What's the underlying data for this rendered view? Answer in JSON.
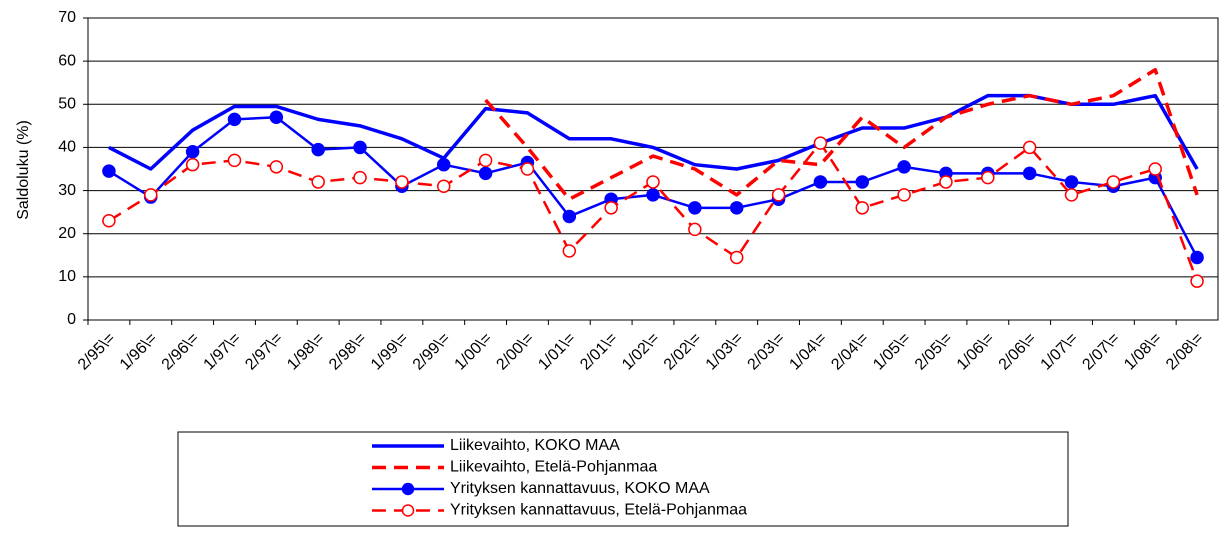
{
  "chart_data": {
    "type": "line",
    "y_label": "Saldoluku (%)",
    "categories": [
      "2/95\\=",
      "1/96\\=",
      "2/96\\=",
      "1/97\\=",
      "2/97\\=",
      "1/98\\=",
      "2/98\\=",
      "1/99\\=",
      "2/99\\=",
      "1/00\\=",
      "2/00\\=",
      "1/01\\=",
      "2/01\\=",
      "1/02\\=",
      "2/02\\=",
      "1/03\\=",
      "2/03\\=",
      "1/04\\=",
      "2/04\\=",
      "1/05\\=",
      "2/05\\=",
      "1/06\\=",
      "2/06\\=",
      "1/07\\=",
      "2/07\\=",
      "1/08\\=",
      "2/08\\="
    ],
    "ylim": [
      0,
      70
    ],
    "yticks": [
      0,
      10,
      20,
      30,
      40,
      50,
      60,
      70
    ],
    "grid": true,
    "series": [
      {
        "name": "Liikevaihto, KOKO MAA",
        "color": "#0000ff",
        "style": "solid",
        "marker": "none",
        "values": [
          40,
          35,
          44,
          49.5,
          49.5,
          46.5,
          45,
          42,
          37.5,
          49,
          48,
          42,
          42,
          40,
          36,
          35,
          37,
          41,
          44.5,
          44.5,
          47,
          52,
          52,
          50,
          50,
          52,
          35
        ]
      },
      {
        "name": "Liikevaihto, Etelä-Pohjanmaa",
        "color": "#ff0000",
        "style": "dashed",
        "marker": "none",
        "values": [
          null,
          null,
          null,
          null,
          null,
          null,
          null,
          null,
          null,
          51,
          40,
          28,
          33,
          38,
          35,
          29,
          37,
          36,
          47,
          40,
          47,
          50,
          52,
          50,
          52,
          58,
          29
        ]
      },
      {
        "name": "Yrityksen kannattavuus, KOKO MAA",
        "color": "#0000ff",
        "style": "solid",
        "marker": "filled",
        "values": [
          34.5,
          28.5,
          39,
          46.5,
          47,
          39.5,
          40,
          31,
          36,
          34,
          36.5,
          24,
          28,
          29,
          26,
          26,
          28,
          32,
          32,
          35.5,
          34,
          34,
          34,
          32,
          31,
          33,
          14.5
        ]
      },
      {
        "name": "Yrityksen kannattavuus, Etelä-Pohjanmaa",
        "color": "#ff0000",
        "style": "dashed",
        "marker": "open",
        "values": [
          23,
          29,
          36,
          37,
          35.5,
          32,
          33,
          32,
          31,
          37,
          35,
          16,
          26,
          32,
          21,
          14.5,
          29,
          41,
          26,
          29,
          32,
          33,
          40,
          29,
          32,
          35,
          9
        ]
      }
    ]
  }
}
